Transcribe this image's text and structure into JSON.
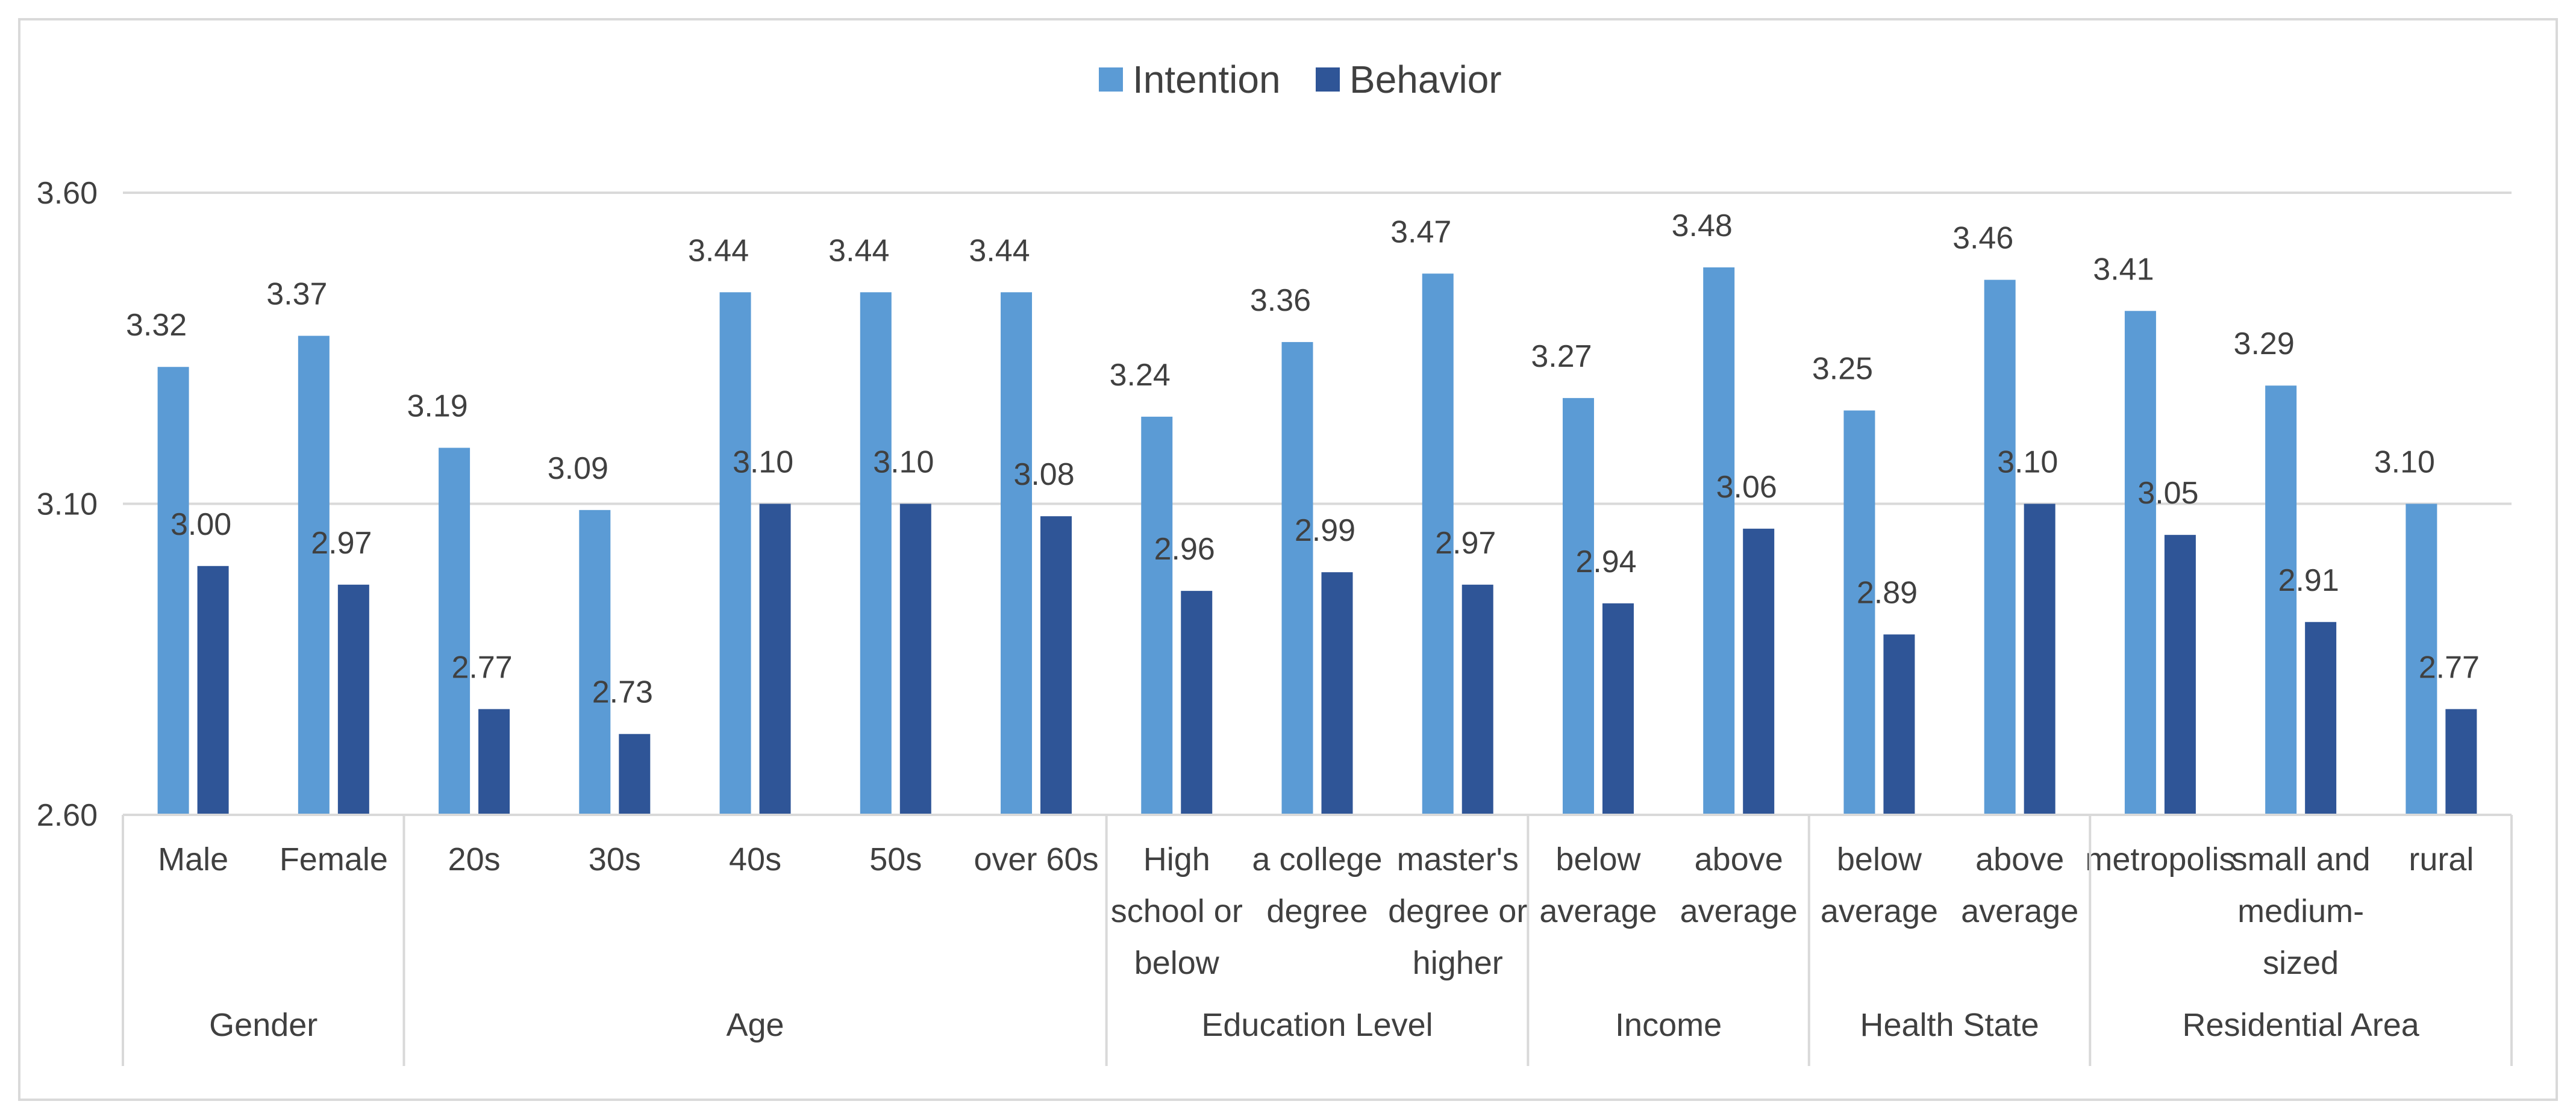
{
  "chart_data": {
    "type": "bar",
    "title": "",
    "xlabel": "",
    "ylabel": "",
    "ylim": [
      2.6,
      3.6
    ],
    "yticks": [
      "2.60",
      "3.10",
      "3.60"
    ],
    "legend_position": "top-center",
    "grid": true,
    "groups": [
      {
        "name": "Gender",
        "categories": [
          [
            "Male"
          ],
          [
            "Female"
          ]
        ]
      },
      {
        "name": "Age",
        "categories": [
          [
            "20s"
          ],
          [
            "30s"
          ],
          [
            "40s"
          ],
          [
            "50s"
          ],
          [
            "over 60s"
          ]
        ]
      },
      {
        "name": "Education Level",
        "categories": [
          [
            "High",
            "school or",
            "below"
          ],
          [
            "a college",
            "degree"
          ],
          [
            "master's",
            "degree or",
            "higher"
          ]
        ]
      },
      {
        "name": "Income",
        "categories": [
          [
            "below",
            "average"
          ],
          [
            "above",
            "average"
          ]
        ]
      },
      {
        "name": "Health State",
        "categories": [
          [
            "below",
            "average"
          ],
          [
            "above",
            "average"
          ]
        ]
      },
      {
        "name": "Residential Area",
        "categories": [
          [
            "metropolis"
          ],
          [
            "small and",
            "medium-",
            "sized"
          ],
          [
            "rural"
          ]
        ]
      }
    ],
    "series": [
      {
        "name": "Intention",
        "color": "#5b9bd5",
        "values": [
          3.32,
          3.37,
          3.19,
          3.09,
          3.44,
          3.44,
          3.44,
          3.24,
          3.36,
          3.47,
          3.27,
          3.48,
          3.25,
          3.46,
          3.41,
          3.29,
          3.1
        ],
        "labels": [
          "3.32",
          "3.37",
          "3.19",
          "3.09",
          "3.44",
          "3.44",
          "3.44",
          "3.24",
          "3.36",
          "3.47",
          "3.27",
          "3.48",
          "3.25",
          "3.46",
          "3.41",
          "3.29",
          "3.10"
        ]
      },
      {
        "name": "Behavior",
        "color": "#2f5597",
        "values": [
          3.0,
          2.97,
          2.77,
          2.73,
          3.1,
          3.1,
          3.08,
          2.96,
          2.99,
          2.97,
          2.94,
          3.06,
          2.89,
          3.1,
          3.05,
          2.91,
          2.77
        ],
        "labels": [
          "3.00",
          "2.97",
          "2.77",
          "2.73",
          "3.10",
          "3.10",
          "3.08",
          "2.96",
          "2.99",
          "2.97",
          "2.94",
          "3.06",
          "2.89",
          "3.10",
          "3.05",
          "2.91",
          "2.77"
        ]
      }
    ]
  }
}
